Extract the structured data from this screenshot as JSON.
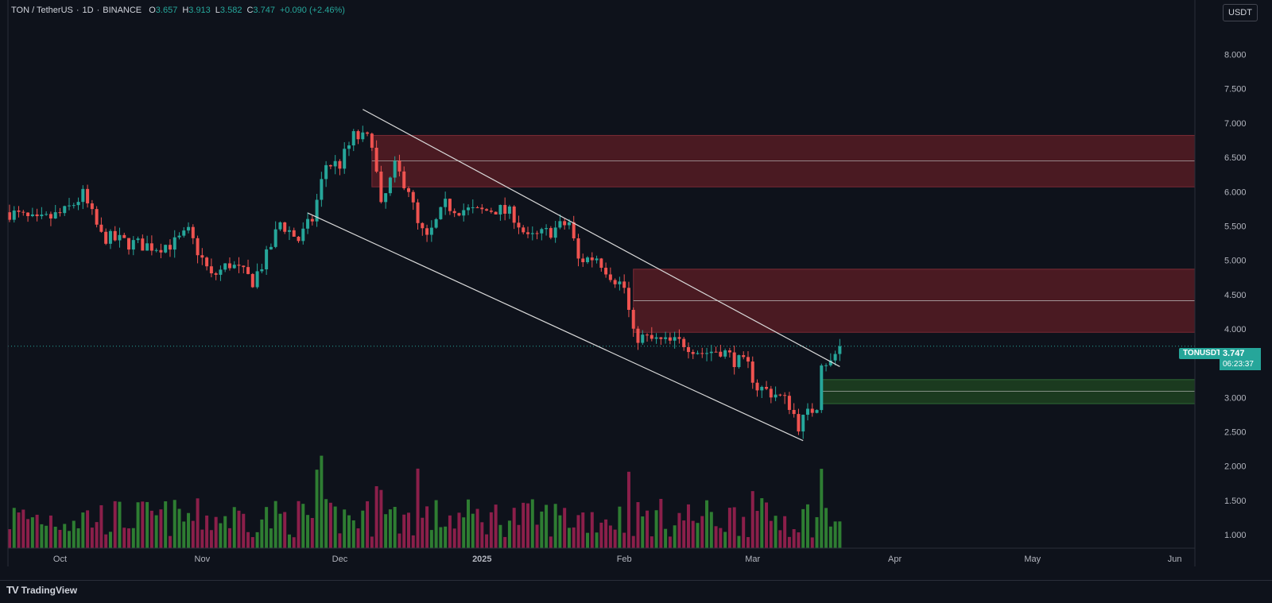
{
  "header": {
    "symbol": "TON / TetherUS",
    "interval": "1D",
    "exchange": "BINANCE",
    "o_label": "O",
    "o_value": "3.657",
    "h_label": "H",
    "h_value": "3.913",
    "l_label": "L",
    "l_value": "3.582",
    "c_label": "C",
    "c_value": "3.747",
    "change": "+0.090 (+2.46%)"
  },
  "unit_button": "USDT",
  "last_price": {
    "ticker": "TONUSDT",
    "price": "3.747",
    "countdown": "06:23:37"
  },
  "brand": {
    "logo": "TV",
    "name": "TradingView"
  },
  "colors": {
    "background": "#0e121b",
    "up": "#26a69a",
    "down": "#ef5350",
    "vol_up": "#2e7d32",
    "vol_down": "#8b1f4a",
    "resistance_zone": "#4a1a22",
    "support_zone": "#1b3a1f",
    "trendline": "#d9d9d9"
  },
  "chart_data": {
    "type": "candlestick",
    "y_ticks": [
      "1.000",
      "1.500",
      "2.000",
      "2.500",
      "3.000",
      "3.500",
      "4.000",
      "4.500",
      "5.000",
      "5.500",
      "6.000",
      "6.500",
      "7.000",
      "7.500",
      "8.000"
    ],
    "x_labels": [
      "Oct",
      "Nov",
      "Dec",
      "2025",
      "Feb",
      "Mar",
      "Apr",
      "May",
      "Jun"
    ],
    "zones": [
      {
        "kind": "resistance",
        "low": 6.07,
        "high": 6.82,
        "mid": 6.45
      },
      {
        "kind": "resistance",
        "low": 3.95,
        "high": 4.87,
        "mid": 4.41
      },
      {
        "kind": "support",
        "low": 2.91,
        "high": 3.26,
        "mid": 3.09
      }
    ],
    "channel": {
      "upper": {
        "from": [
          "2024-12-06",
          7.2
        ],
        "to": [
          "2025-03-20",
          3.45
        ]
      },
      "lower": {
        "from": [
          "2024-11-24",
          5.69
        ],
        "to": [
          "2025-03-12",
          2.37
        ]
      }
    },
    "last_price_line": 3.747,
    "price_path": [
      [
        "2024-09-20",
        5.7
      ],
      [
        "2024-09-26",
        5.55
      ],
      [
        "2024-10-02",
        5.7
      ],
      [
        "2024-10-06",
        5.95
      ],
      [
        "2024-10-10",
        5.35
      ],
      [
        "2024-10-16",
        5.25
      ],
      [
        "2024-10-22",
        5.2
      ],
      [
        "2024-10-26",
        5.25
      ],
      [
        "2024-10-29",
        5.4
      ],
      [
        "2024-11-03",
        4.75
      ],
      [
        "2024-11-07",
        4.95
      ],
      [
        "2024-11-12",
        4.7
      ],
      [
        "2024-11-15",
        5.05
      ],
      [
        "2024-11-18",
        5.55
      ],
      [
        "2024-11-22",
        5.3
      ],
      [
        "2024-11-25",
        5.6
      ],
      [
        "2024-11-28",
        6.4
      ],
      [
        "2024-12-01",
        6.4
      ],
      [
        "2024-12-04",
        6.8
      ],
      [
        "2024-12-08",
        6.75
      ],
      [
        "2024-12-10",
        5.75
      ],
      [
        "2024-12-13",
        6.35
      ],
      [
        "2024-12-16",
        6.05
      ],
      [
        "2024-12-18",
        5.5
      ],
      [
        "2024-12-20",
        5.3
      ],
      [
        "2024-12-24",
        5.8
      ],
      [
        "2024-12-27",
        5.75
      ],
      [
        "2024-12-31",
        5.7
      ],
      [
        "2025-01-04",
        5.75
      ],
      [
        "2025-01-08",
        5.65
      ],
      [
        "2025-01-11",
        5.3
      ],
      [
        "2025-01-15",
        5.4
      ],
      [
        "2025-01-20",
        5.55
      ],
      [
        "2025-01-22",
        5.0
      ],
      [
        "2025-01-26",
        5.05
      ],
      [
        "2025-01-29",
        4.8
      ],
      [
        "2025-02-01",
        4.6
      ],
      [
        "2025-02-03",
        3.9
      ],
      [
        "2025-02-06",
        3.85
      ],
      [
        "2025-02-10",
        3.8
      ],
      [
        "2025-02-14",
        3.8
      ],
      [
        "2025-02-18",
        3.65
      ],
      [
        "2025-02-22",
        3.7
      ],
      [
        "2025-02-25",
        3.55
      ],
      [
        "2025-02-28",
        3.45
      ],
      [
        "2025-03-02",
        3.15
      ],
      [
        "2025-03-06",
        3.05
      ],
      [
        "2025-03-09",
        2.9
      ],
      [
        "2025-03-11",
        2.6
      ],
      [
        "2025-03-13",
        2.75
      ],
      [
        "2025-03-15",
        2.9
      ],
      [
        "2025-03-16",
        3.55
      ],
      [
        "2025-03-18",
        3.5
      ],
      [
        "2025-03-20",
        3.747
      ]
    ],
    "volume_axis_baseline": 1.0
  }
}
